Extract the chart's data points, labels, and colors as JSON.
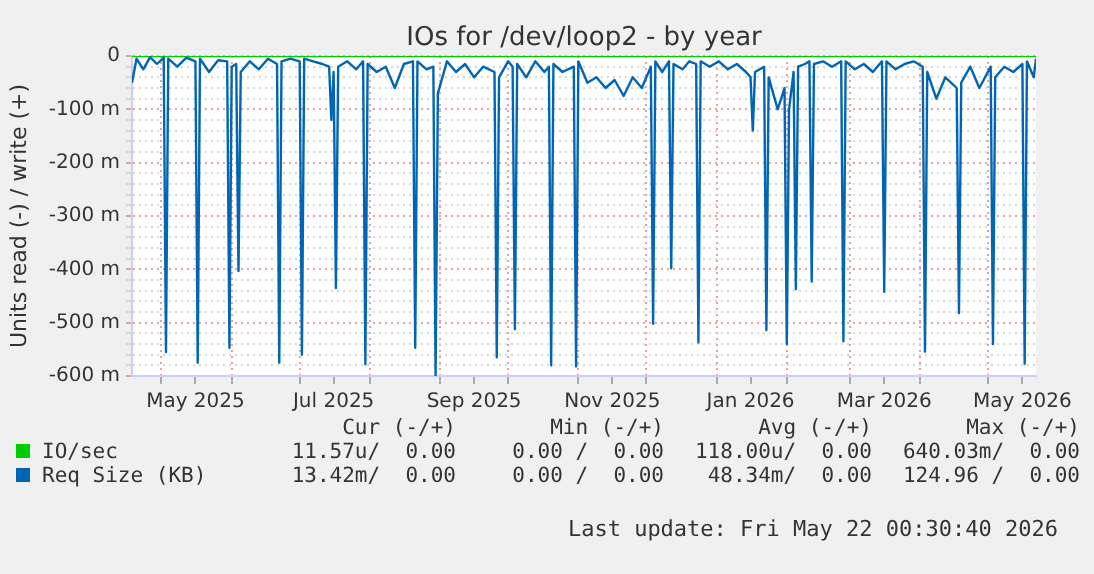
{
  "chart_data": {
    "type": "line",
    "title": "IOs for /dev/loop2 - by year",
    "ylabel": "Units read (-) / write (+)",
    "xlim": [
      "2025-04-18",
      "2026-05-22"
    ],
    "xticks": [
      {
        "value": "2025-05-01",
        "label": null
      },
      {
        "value": "2025-05-16",
        "label": "May 2025"
      },
      {
        "value": "2025-06-01",
        "label": null
      },
      {
        "value": "2025-07-01",
        "label": null
      },
      {
        "value": "2025-07-16",
        "label": "Jul 2025"
      },
      {
        "value": "2025-08-01",
        "label": null
      },
      {
        "value": "2025-09-01",
        "label": null
      },
      {
        "value": "2025-09-16",
        "label": "Sep 2025"
      },
      {
        "value": "2025-10-01",
        "label": null
      },
      {
        "value": "2025-11-01",
        "label": null
      },
      {
        "value": "2025-11-16",
        "label": "Nov 2025"
      },
      {
        "value": "2025-12-01",
        "label": null
      },
      {
        "value": "2026-01-01",
        "label": null
      },
      {
        "value": "2026-01-16",
        "label": "Jan 2026"
      },
      {
        "value": "2026-02-01",
        "label": null
      },
      {
        "value": "2026-03-01",
        "label": null
      },
      {
        "value": "2026-03-16",
        "label": "Mar 2026"
      },
      {
        "value": "2026-04-01",
        "label": null
      },
      {
        "value": "2026-05-01",
        "label": null
      },
      {
        "value": "2026-05-16",
        "label": "May 2026"
      }
    ],
    "ylim": [
      -600,
      0
    ],
    "yticks": [
      {
        "value": -600,
        "label": "-600 m"
      },
      {
        "value": -580,
        "label": null
      },
      {
        "value": -560,
        "label": null
      },
      {
        "value": -540,
        "label": null
      },
      {
        "value": -520,
        "label": null
      },
      {
        "value": -500,
        "label": "-500 m"
      },
      {
        "value": -480,
        "label": null
      },
      {
        "value": -460,
        "label": null
      },
      {
        "value": -440,
        "label": null
      },
      {
        "value": -420,
        "label": null
      },
      {
        "value": -400,
        "label": "-400 m"
      },
      {
        "value": -380,
        "label": null
      },
      {
        "value": -360,
        "label": null
      },
      {
        "value": -340,
        "label": null
      },
      {
        "value": -320,
        "label": null
      },
      {
        "value": -300,
        "label": "-300 m"
      },
      {
        "value": -280,
        "label": null
      },
      {
        "value": -260,
        "label": null
      },
      {
        "value": -240,
        "label": null
      },
      {
        "value": -220,
        "label": null
      },
      {
        "value": -200,
        "label": "-200 m"
      },
      {
        "value": -180,
        "label": null
      },
      {
        "value": -160,
        "label": null
      },
      {
        "value": -140,
        "label": null
      },
      {
        "value": -120,
        "label": null
      },
      {
        "value": -100,
        "label": "-100 m"
      },
      {
        "value": -80,
        "label": null
      },
      {
        "value": -60,
        "label": null
      },
      {
        "value": -40,
        "label": null
      },
      {
        "value": -20,
        "label": null
      },
      {
        "value": 0,
        "label": "0"
      }
    ],
    "grid": true,
    "legend": "bottom",
    "marker": "none",
    "line_style": "solid",
    "series": [
      {
        "name": "IO/sec",
        "color": "#00cc00",
        "x": [
          "2025-04-18",
          "2026-05-22"
        ],
        "values": [
          0,
          0
        ]
      },
      {
        "name": "Req Size (KB)",
        "color": "#0066b3",
        "x": [
          "2025-04-18",
          "2025-04-20",
          "2025-04-23",
          "2025-04-26",
          "2025-04-29",
          "2025-05-02",
          "2025-05-03",
          "2025-05-04",
          "2025-05-08",
          "2025-05-12",
          "2025-05-16",
          "2025-05-17",
          "2025-05-18",
          "2025-05-22",
          "2025-05-26",
          "2025-05-30",
          "2025-05-31",
          "2025-06-01",
          "2025-06-03",
          "2025-06-04",
          "2025-06-05",
          "2025-06-09",
          "2025-06-13",
          "2025-06-17",
          "2025-06-21",
          "2025-06-22",
          "2025-06-23",
          "2025-06-27",
          "2025-07-01",
          "2025-07-02",
          "2025-07-03",
          "2025-07-07",
          "2025-07-11",
          "2025-07-14",
          "2025-07-15",
          "2025-07-16",
          "2025-07-17",
          "2025-07-18",
          "2025-07-22",
          "2025-07-26",
          "2025-07-29",
          "2025-07-30",
          "2025-07-31",
          "2025-08-04",
          "2025-08-08",
          "2025-08-12",
          "2025-08-16",
          "2025-08-20",
          "2025-08-21",
          "2025-08-22",
          "2025-08-26",
          "2025-08-29",
          "2025-08-30",
          "2025-08-31",
          "2025-09-04",
          "2025-09-08",
          "2025-09-12",
          "2025-09-16",
          "2025-09-20",
          "2025-09-25",
          "2025-09-26",
          "2025-09-27",
          "2025-10-01",
          "2025-10-03",
          "2025-10-04",
          "2025-10-05",
          "2025-10-09",
          "2025-10-13",
          "2025-10-17",
          "2025-10-19",
          "2025-10-20",
          "2025-10-21",
          "2025-10-25",
          "2025-10-30",
          "2025-10-31",
          "2025-11-01",
          "2025-11-05",
          "2025-11-09",
          "2025-11-13",
          "2025-11-17",
          "2025-11-21",
          "2025-11-25",
          "2025-11-29",
          "2025-12-03",
          "2025-12-04",
          "2025-12-05",
          "2025-12-08",
          "2025-12-11",
          "2025-12-12",
          "2025-12-13",
          "2025-12-17",
          "2025-12-20",
          "2025-12-23",
          "2025-12-24",
          "2025-12-25",
          "2025-12-29",
          "2026-01-02",
          "2026-01-06",
          "2026-01-10",
          "2026-01-14",
          "2026-01-16",
          "2026-01-17",
          "2026-01-18",
          "2026-01-22",
          "2026-01-23",
          "2026-01-24",
          "2026-01-28",
          "2026-01-31",
          "2026-02-01",
          "2026-02-02",
          "2026-02-04",
          "2026-02-05",
          "2026-02-06",
          "2026-02-09",
          "2026-02-11",
          "2026-02-12",
          "2026-02-13",
          "2026-02-17",
          "2026-02-21",
          "2026-02-25",
          "2026-02-26",
          "2026-02-27",
          "2026-03-03",
          "2026-03-07",
          "2026-03-11",
          "2026-03-15",
          "2026-03-16",
          "2026-03-17",
          "2026-03-21",
          "2026-03-25",
          "2026-03-29",
          "2026-04-02",
          "2026-04-03",
          "2026-04-04",
          "2026-04-08",
          "2026-04-12",
          "2026-04-17",
          "2026-04-18",
          "2026-04-19",
          "2026-04-23",
          "2026-04-27",
          "2026-05-02",
          "2026-05-03",
          "2026-05-04",
          "2026-05-08",
          "2026-05-12",
          "2026-05-16",
          "2026-05-17",
          "2026-05-18",
          "2026-05-21",
          "2026-05-22"
        ],
        "values": [
          -50,
          -5,
          -25,
          -2,
          -15,
          -3,
          -555,
          -5,
          -20,
          -3,
          -10,
          -575,
          -5,
          -30,
          -8,
          -10,
          -547,
          -20,
          -15,
          -403,
          -30,
          -10,
          -25,
          -5,
          -15,
          -575,
          -10,
          -5,
          -10,
          -560,
          -5,
          -10,
          -15,
          -20,
          -120,
          -30,
          -435,
          -20,
          -10,
          -25,
          -10,
          -578,
          -15,
          -30,
          -20,
          -60,
          -15,
          -10,
          -547,
          -10,
          -25,
          -20,
          -600,
          -70,
          -10,
          -30,
          -15,
          -40,
          -20,
          -30,
          -565,
          -40,
          -10,
          -20,
          -512,
          -15,
          -40,
          -10,
          -30,
          -20,
          -580,
          -15,
          -30,
          -20,
          -582,
          -10,
          -50,
          -40,
          -60,
          -45,
          -75,
          -40,
          -60,
          -20,
          -502,
          -10,
          -30,
          -10,
          -398,
          -15,
          -25,
          -10,
          -15,
          -537,
          -10,
          -20,
          -10,
          -25,
          -15,
          -30,
          -40,
          -140,
          -30,
          -20,
          -514,
          -40,
          -100,
          -60,
          -540,
          -100,
          -30,
          -437,
          -20,
          -15,
          -10,
          -423,
          -15,
          -10,
          -20,
          -10,
          -535,
          -10,
          -25,
          -15,
          -30,
          -10,
          -442,
          -10,
          -25,
          -15,
          -10,
          -20,
          -554,
          -30,
          -80,
          -40,
          -60,
          -482,
          -50,
          -20,
          -60,
          -20,
          -540,
          -40,
          -20,
          -30,
          -15,
          -577,
          -10,
          -40,
          -5
        ]
      }
    ],
    "annotations": [
      "Cur (-/+)",
      "Min (-/+)",
      "Avg (-/+)",
      "Max (-/+)",
      "11.57u/  0.00",
      "0.00 /  0.00",
      "118.00u/  0.00",
      "640.03m/  0.00",
      "13.42m/  0.00",
      "0.00 /  0.00",
      "48.34m/  0.00",
      "124.96 /  0.00",
      "Last update: Fri May 22 00:30:40 2026"
    ]
  }
}
